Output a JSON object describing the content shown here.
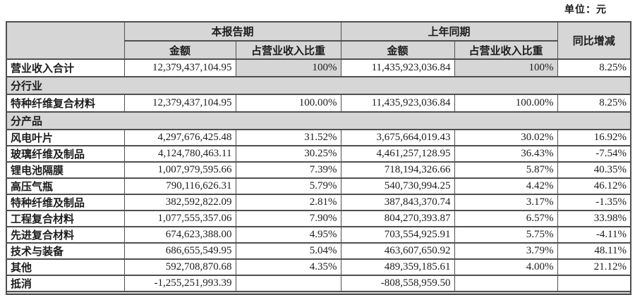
{
  "meta": {
    "unit_label": "单位：元"
  },
  "colors": {
    "shading_gray": "#d6d6d6",
    "border_gray": "#4f4f4f",
    "text": "#1c1c1c"
  },
  "table": {
    "header": {
      "current_period": "本报告期",
      "prior_period": "上年同期",
      "yoy": "同比增减",
      "amount": "金额",
      "ratio": "占营业收入比重"
    },
    "rows": [
      {
        "type": "data",
        "label": "营业收入合计",
        "current_amount": "12,379,437,104.95",
        "current_ratio": "100%",
        "prior_amount": "11,435,923,036.84",
        "prior_ratio": "100%",
        "yoy": "8.25%",
        "shaded_ratio": true
      },
      {
        "type": "section",
        "label": "分行业"
      },
      {
        "type": "data",
        "label": "特种纤维复合材料",
        "current_amount": "12,379,437,104.95",
        "current_ratio": "100.00%",
        "prior_amount": "11,435,923,036.84",
        "prior_ratio": "100.00%",
        "yoy": "8.25%"
      },
      {
        "type": "section",
        "label": "分产品"
      },
      {
        "type": "data",
        "label": "风电叶片",
        "current_amount": "4,297,676,425.48",
        "current_ratio": "31.52%",
        "prior_amount": "3,675,664,019.43",
        "prior_ratio": "30.02%",
        "yoy": "16.92%"
      },
      {
        "type": "data",
        "label": "玻璃纤维及制品",
        "current_amount": "4,124,780,463.11",
        "current_ratio": "30.25%",
        "prior_amount": "4,461,257,128.95",
        "prior_ratio": "36.43%",
        "yoy": "-7.54%"
      },
      {
        "type": "data",
        "label": "锂电池隔膜",
        "current_amount": "1,007,979,595.66",
        "current_ratio": "7.39%",
        "prior_amount": "718,194,326.66",
        "prior_ratio": "5.87%",
        "yoy": "40.35%"
      },
      {
        "type": "data",
        "label": "高压气瓶",
        "current_amount": "790,116,626.31",
        "current_ratio": "5.79%",
        "prior_amount": "540,730,994.25",
        "prior_ratio": "4.42%",
        "yoy": "46.12%"
      },
      {
        "type": "data",
        "label": "特种纤维及制品",
        "current_amount": "382,592,822.09",
        "current_ratio": "2.81%",
        "prior_amount": "387,843,370.74",
        "prior_ratio": "3.17%",
        "yoy": "-1.35%"
      },
      {
        "type": "data",
        "label": "工程复合材料",
        "current_amount": "1,077,555,357.06",
        "current_ratio": "7.90%",
        "prior_amount": "804,270,393.87",
        "prior_ratio": "6.57%",
        "yoy": "33.98%"
      },
      {
        "type": "data",
        "label": "先进复合材料",
        "current_amount": "674,623,388.00",
        "current_ratio": "4.95%",
        "prior_amount": "703,554,925.91",
        "prior_ratio": "5.75%",
        "yoy": "-4.11%"
      },
      {
        "type": "data",
        "label": "技术与装备",
        "current_amount": "686,655,549.95",
        "current_ratio": "5.04%",
        "prior_amount": "463,607,650.92",
        "prior_ratio": "3.79%",
        "yoy": "48.11%"
      },
      {
        "type": "data",
        "label": "其他",
        "current_amount": "592,708,870.68",
        "current_ratio": "4.35%",
        "prior_amount": "489,359,185.61",
        "prior_ratio": "4.00%",
        "yoy": "21.12%"
      },
      {
        "type": "data",
        "label": "抵消",
        "current_amount": "-1,255,251,993.39",
        "current_ratio": "",
        "prior_amount": "-808,558,959.50",
        "prior_ratio": "",
        "yoy": ""
      }
    ]
  }
}
